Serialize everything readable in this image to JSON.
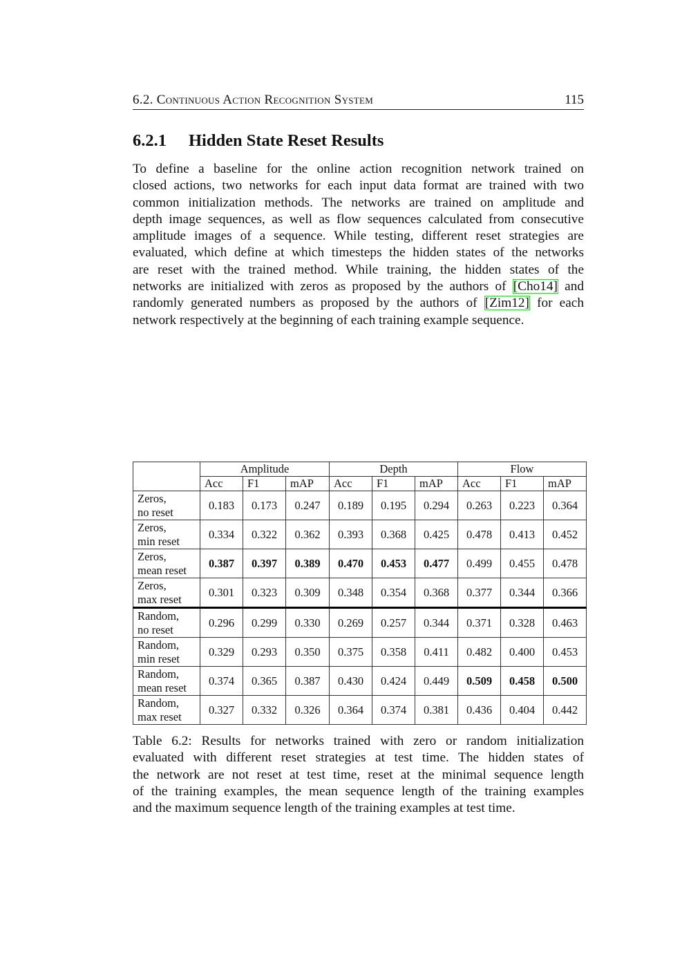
{
  "header": {
    "section": "6.2. Continuous Action Recognition System",
    "page": "115"
  },
  "heading": {
    "number": "6.2.1",
    "title": "Hidden State Reset Results"
  },
  "body_lines": [
    [
      {
        "t": "To define a baseline for the online action recognition network trained on"
      }
    ],
    [
      {
        "t": "closed actions, two networks for each input data format are trained with two"
      }
    ],
    [
      {
        "t": "common initialization methods. The networks are trained on amplitude and"
      }
    ],
    [
      {
        "t": "depth image sequences, as well as flow sequences calculated from consecutive"
      }
    ],
    [
      {
        "t": "amplitude images of a sequence. While testing, different reset strategies are"
      }
    ],
    [
      {
        "t": "evaluated, which define at which timesteps the hidden states of the networks"
      }
    ],
    [
      {
        "t": "are reset with the trained method. While training, the hidden states of the"
      }
    ],
    [
      {
        "t": "networks are initialized with zeros as proposed by the authors of "
      },
      {
        "t": "[Cho14]",
        "cite": true
      },
      {
        "t": " and"
      }
    ],
    [
      {
        "t": "randomly generated numbers as proposed by the authors of "
      },
      {
        "t": "[Zim12]",
        "cite": true
      },
      {
        "t": " for each"
      }
    ],
    [
      {
        "t": "network respectively at the beginning of each training example sequence."
      }
    ]
  ],
  "table": {
    "groups": [
      "Amplitude",
      "Depth",
      "Flow"
    ],
    "metrics": [
      "Acc",
      "F1",
      "mAP",
      "Acc",
      "F1",
      "mAP",
      "Acc",
      "F1",
      "mAP"
    ],
    "rows": [
      {
        "label": [
          "Zeros,",
          "no reset"
        ],
        "values": [
          "0.183",
          "0.173",
          "0.247",
          "0.189",
          "0.195",
          "0.294",
          "0.263",
          "0.223",
          "0.364"
        ],
        "bold": []
      },
      {
        "label": [
          "Zeros,",
          "min reset"
        ],
        "values": [
          "0.334",
          "0.322",
          "0.362",
          "0.393",
          "0.368",
          "0.425",
          "0.478",
          "0.413",
          "0.452"
        ],
        "bold": []
      },
      {
        "label": [
          "Zeros,",
          "mean reset"
        ],
        "values": [
          "0.387",
          "0.397",
          "0.389",
          "0.470",
          "0.453",
          "0.477",
          "0.499",
          "0.455",
          "0.478"
        ],
        "bold": [
          0,
          1,
          2,
          3,
          4,
          5
        ]
      },
      {
        "label": [
          "Zeros,",
          "max reset"
        ],
        "values": [
          "0.301",
          "0.323",
          "0.309",
          "0.348",
          "0.354",
          "0.368",
          "0.377",
          "0.344",
          "0.366"
        ],
        "bold": []
      },
      {
        "label": [
          "Random,",
          "no reset"
        ],
        "values": [
          "0.296",
          "0.299",
          "0.330",
          "0.269",
          "0.257",
          "0.344",
          "0.371",
          "0.328",
          "0.463"
        ],
        "bold": []
      },
      {
        "label": [
          "Random,",
          "min reset"
        ],
        "values": [
          "0.329",
          "0.293",
          "0.350",
          "0.375",
          "0.358",
          "0.411",
          "0.482",
          "0.400",
          "0.453"
        ],
        "bold": []
      },
      {
        "label": [
          "Random,",
          "mean reset"
        ],
        "values": [
          "0.374",
          "0.365",
          "0.387",
          "0.430",
          "0.424",
          "0.449",
          "0.509",
          "0.458",
          "0.500"
        ],
        "bold": [
          6,
          7,
          8
        ]
      },
      {
        "label": [
          "Random,",
          "max reset"
        ],
        "values": [
          "0.327",
          "0.332",
          "0.326",
          "0.364",
          "0.374",
          "0.381",
          "0.436",
          "0.404",
          "0.442"
        ],
        "bold": []
      }
    ]
  },
  "caption_lines": [
    "Table 6.2: Results for networks trained with zero or random initialization",
    "evaluated with different reset strategies at test time. The hidden states of",
    "the network are not reset at test time, reset at the minimal sequence length",
    "of the training examples, the mean sequence length of the training examples",
    "and the maximum sequence length of the training examples at test time."
  ],
  "colors": {
    "citation_box": "#2fd22f"
  }
}
